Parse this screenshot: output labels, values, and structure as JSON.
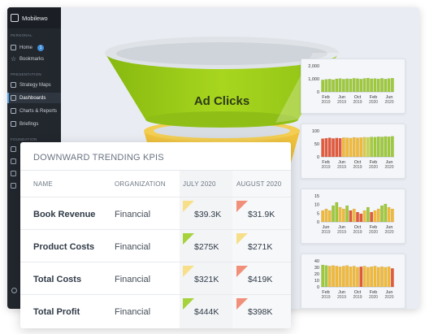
{
  "sidebar": {
    "app_name": "Mobilewo",
    "section_personal": "Personal",
    "section_presentation": "Presentation",
    "section_foundation": "Foundation",
    "items": [
      {
        "label": "Home",
        "badge": "1"
      },
      {
        "label": "Bookmarks"
      },
      {
        "label": "Strategy Maps"
      },
      {
        "label": "Dashboards"
      },
      {
        "label": "Charts & Reports"
      },
      {
        "label": "Briefings"
      }
    ]
  },
  "funnel": {
    "label": "Ad Clicks",
    "colors": {
      "top": "#9fd21a",
      "second": "#f5c842"
    }
  },
  "mini_charts": [
    {
      "y_ticks": [
        "2,000",
        "1,000",
        "0"
      ],
      "ymax": 2400,
      "x_labels": [
        [
          "Feb",
          "2019"
        ],
        [
          "Jun",
          "2019"
        ],
        [
          "Oct",
          "2019"
        ],
        [
          "Feb",
          "2020"
        ],
        [
          "Jun",
          "2020"
        ]
      ],
      "values": [
        1100,
        1150,
        1180,
        1120,
        1200,
        1230,
        1170,
        1210,
        1190,
        1250,
        1220,
        1180,
        1240,
        1270,
        1210,
        1230,
        1190,
        1250,
        1180,
        1230,
        1260
      ],
      "colors": [
        "#9dc93b",
        "#9dc93b",
        "#9dc93b",
        "#9dc93b",
        "#9dc93b",
        "#9dc93b",
        "#9dc93b",
        "#9dc93b",
        "#9dc93b",
        "#9dc93b",
        "#9dc93b",
        "#9dc93b",
        "#9dc93b",
        "#9dc93b",
        "#9dc93b",
        "#9dc93b",
        "#9dc93b",
        "#9dc93b",
        "#9dc93b",
        "#9dc93b",
        "#9dc93b"
      ]
    },
    {
      "y_ticks": [
        "100",
        "50",
        "0"
      ],
      "ymax": 120,
      "x_labels": [
        [
          "Feb",
          "2019"
        ],
        [
          "Jun",
          "2019"
        ],
        [
          "Oct",
          "2019"
        ],
        [
          "Feb",
          "2020"
        ],
        [
          "Jun",
          "2020"
        ]
      ],
      "values": [
        84,
        86,
        88,
        85,
        87,
        86,
        89,
        88,
        87,
        90,
        88,
        89,
        91,
        90,
        92,
        91,
        93,
        92,
        94,
        93,
        95
      ],
      "colors": [
        "#e2593c",
        "#e2593c",
        "#e2593c",
        "#e2593c",
        "#e2593c",
        "#e2593c",
        "#f0b93a",
        "#f0b93a",
        "#f0b93a",
        "#f0b93a",
        "#f0b93a",
        "#f0b93a",
        "#d8c94a",
        "#c9d64c",
        "#a6cc3e",
        "#9dc93b",
        "#9dc93b",
        "#9dc93b",
        "#9dc93b",
        "#9dc93b",
        "#9dc93b"
      ]
    },
    {
      "y_ticks": [
        "15",
        "10",
        "5",
        "0"
      ],
      "ymax": 16,
      "x_labels": [
        [
          "Jun",
          "2019"
        ],
        [
          "Jun",
          "2019"
        ],
        [
          "Oct",
          "2019"
        ],
        [
          "Feb",
          "2020"
        ],
        [
          "Jun",
          "2020"
        ]
      ],
      "values": [
        7,
        8,
        7,
        10,
        12,
        9,
        8,
        10,
        7,
        8,
        6,
        5,
        7,
        9,
        6,
        7,
        8,
        10,
        11,
        9,
        8
      ],
      "colors": [
        "#f0b93a",
        "#f0b93a",
        "#f0b93a",
        "#9dc93b",
        "#9dc93b",
        "#f0b93a",
        "#f0b93a",
        "#9dc93b",
        "#e2593c",
        "#f0b93a",
        "#e2593c",
        "#e2593c",
        "#f0b93a",
        "#9dc93b",
        "#e2593c",
        "#f0b93a",
        "#f0b93a",
        "#9dc93b",
        "#9dc93b",
        "#f0b93a",
        "#f0b93a"
      ]
    },
    {
      "y_ticks": [
        "40",
        "30",
        "20",
        "10",
        "0"
      ],
      "ymax": 45,
      "x_labels": [
        [
          "Feb",
          "2019"
        ],
        [
          "Jun",
          "2019"
        ],
        [
          "Oct",
          "2019"
        ],
        [
          "Feb",
          "2020"
        ],
        [
          "Jun",
          "2020"
        ]
      ],
      "values": [
        38,
        37,
        36,
        37,
        36,
        35,
        36,
        37,
        35,
        36,
        34,
        35,
        36,
        34,
        35,
        36,
        34,
        35,
        34,
        35,
        32
      ],
      "colors": [
        "#9dc93b",
        "#9dc93b",
        "#f0b93a",
        "#f0b93a",
        "#f0b93a",
        "#f0b93a",
        "#f0b93a",
        "#f0b93a",
        "#f0b93a",
        "#f0b93a",
        "#f0b93a",
        "#e2593c",
        "#f0b93a",
        "#f0b93a",
        "#f0b93a",
        "#f0b93a",
        "#f0b93a",
        "#f0b93a",
        "#f0b93a",
        "#f0b93a",
        "#e2593c"
      ]
    }
  ],
  "kpi": {
    "title": "DOWNWARD TRENDING KPIS",
    "headers": {
      "name": "NAME",
      "org": "ORGANIZATION",
      "july": "JULY 2020",
      "august": "AUGUST 2020"
    },
    "rows": [
      {
        "name": "Book Revenue",
        "org": "Financial",
        "july": "$39.3K",
        "july_status": "yellow",
        "august": "$31.9K",
        "august_status": "red"
      },
      {
        "name": "Product Costs",
        "org": "Financial",
        "july": "$275K",
        "july_status": "green",
        "august": "$271K",
        "august_status": "yellow"
      },
      {
        "name": "Total Costs",
        "org": "Financial",
        "july": "$321K",
        "july_status": "yellow",
        "august": "$419K",
        "august_status": "red"
      },
      {
        "name": "Total Profit",
        "org": "Financial",
        "july": "$444K",
        "july_status": "green",
        "august": "$398K",
        "august_status": "red"
      }
    ],
    "status_colors": {
      "green": "#a6d23c",
      "yellow": "#f7df8a",
      "red": "#f0907a"
    }
  }
}
